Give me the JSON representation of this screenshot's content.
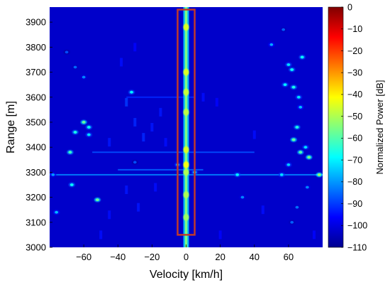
{
  "chart_data": {
    "type": "heatmap",
    "title": "",
    "xlabel": "Velocity [km/h]",
    "ylabel": "Range [m]",
    "xlim": [
      -80,
      80
    ],
    "ylim": [
      3000,
      3960
    ],
    "xticks": [
      -60,
      -40,
      -20,
      0,
      20,
      40,
      60
    ],
    "yticks": [
      3000,
      3100,
      3200,
      3300,
      3400,
      3500,
      3600,
      3700,
      3800,
      3900
    ],
    "colorbar": {
      "label": "Normalized Power [dB]",
      "range": [
        -110,
        0
      ],
      "ticks": [
        0,
        -10,
        -20,
        -30,
        -40,
        -50,
        -60,
        -70,
        -80,
        -90,
        -100,
        -110
      ],
      "colormap": "jet"
    },
    "background_level_db": -102,
    "highlight_box": {
      "x": [
        -5,
        5
      ],
      "y": [
        3050,
        3950
      ],
      "color": "#c0392b"
    },
    "zero_velocity_ridge": {
      "x": 0,
      "y_range": [
        3000,
        3960
      ],
      "level_db": -55,
      "peaks": [
        {
          "y": 3880,
          "db": -45
        },
        {
          "y": 3700,
          "db": -45
        },
        {
          "y": 3620,
          "db": -47
        },
        {
          "y": 3540,
          "db": -48
        },
        {
          "y": 3390,
          "db": -45
        },
        {
          "y": 3330,
          "db": -42
        },
        {
          "y": 3300,
          "db": -50
        },
        {
          "y": 3210,
          "db": -50
        },
        {
          "y": 3120,
          "db": -52
        }
      ]
    },
    "horizontal_streaks": [
      {
        "y": 3290,
        "x": [
          -80,
          80
        ],
        "db": -82
      },
      {
        "y": 3380,
        "x": [
          -55,
          40
        ],
        "db": -88
      },
      {
        "y": 3310,
        "x": [
          -40,
          10
        ],
        "db": -86
      },
      {
        "y": 3600,
        "x": [
          -35,
          5
        ],
        "db": -92
      }
    ],
    "targets": [
      {
        "x": -60,
        "y": 3500,
        "db": -58
      },
      {
        "x": -57,
        "y": 3480,
        "db": -68
      },
      {
        "x": -65,
        "y": 3460,
        "db": -66
      },
      {
        "x": -57,
        "y": 3450,
        "db": -72
      },
      {
        "x": -68,
        "y": 3380,
        "db": -62
      },
      {
        "x": -67,
        "y": 3250,
        "db": -68
      },
      {
        "x": -52,
        "y": 3190,
        "db": -58
      },
      {
        "x": -76,
        "y": 3140,
        "db": -76
      },
      {
        "x": -78,
        "y": 3290,
        "db": -80
      },
      {
        "x": -32,
        "y": 3620,
        "db": -70
      },
      {
        "x": -60,
        "y": 3680,
        "db": -82
      },
      {
        "x": -65,
        "y": 3720,
        "db": -85
      },
      {
        "x": -70,
        "y": 3780,
        "db": -88
      },
      {
        "x": -30,
        "y": 3340,
        "db": -88
      },
      {
        "x": -5,
        "y": 3330,
        "db": -75
      },
      {
        "x": 5,
        "y": 3300,
        "db": -72
      },
      {
        "x": 30,
        "y": 3290,
        "db": -70
      },
      {
        "x": 33,
        "y": 3200,
        "db": -82
      },
      {
        "x": 50,
        "y": 3810,
        "db": -78
      },
      {
        "x": 57,
        "y": 3870,
        "db": -86
      },
      {
        "x": 60,
        "y": 3730,
        "db": -72
      },
      {
        "x": 62,
        "y": 3710,
        "db": -68
      },
      {
        "x": 58,
        "y": 3650,
        "db": -70
      },
      {
        "x": 63,
        "y": 3640,
        "db": -66
      },
      {
        "x": 66,
        "y": 3600,
        "db": -72
      },
      {
        "x": 67,
        "y": 3560,
        "db": -76
      },
      {
        "x": 65,
        "y": 3480,
        "db": -66
      },
      {
        "x": 63,
        "y": 3430,
        "db": -58
      },
      {
        "x": 67,
        "y": 3380,
        "db": -60
      },
      {
        "x": 72,
        "y": 3360,
        "db": -56
      },
      {
        "x": 60,
        "y": 3330,
        "db": -74
      },
      {
        "x": 56,
        "y": 3290,
        "db": -72
      },
      {
        "x": 78,
        "y": 3290,
        "db": -52
      },
      {
        "x": 70,
        "y": 3400,
        "db": -72
      },
      {
        "x": 68,
        "y": 3760,
        "db": -68
      },
      {
        "x": 71,
        "y": 3240,
        "db": -82
      },
      {
        "x": 65,
        "y": 3160,
        "db": -84
      },
      {
        "x": 62,
        "y": 3100,
        "db": -86
      }
    ],
    "faint_clutter": [
      {
        "x": -35,
        "y": 3580,
        "db": -90
      },
      {
        "x": -30,
        "y": 3500,
        "db": -92
      },
      {
        "x": -25,
        "y": 3440,
        "db": -92
      },
      {
        "x": -20,
        "y": 3480,
        "db": -94
      },
      {
        "x": -15,
        "y": 3540,
        "db": -94
      },
      {
        "x": -35,
        "y": 3230,
        "db": -94
      },
      {
        "x": -28,
        "y": 3160,
        "db": -94
      },
      {
        "x": -18,
        "y": 3240,
        "db": -95
      },
      {
        "x": -12,
        "y": 3420,
        "db": -95
      },
      {
        "x": -38,
        "y": 3740,
        "db": -95
      },
      {
        "x": -30,
        "y": 3800,
        "db": -96
      },
      {
        "x": -45,
        "y": 3420,
        "db": -94
      },
      {
        "x": -45,
        "y": 3130,
        "db": -95
      },
      {
        "x": 10,
        "y": 3600,
        "db": -95
      },
      {
        "x": 18,
        "y": 3580,
        "db": -96
      },
      {
        "x": 40,
        "y": 3450,
        "db": -95
      },
      {
        "x": 45,
        "y": 3150,
        "db": -95
      },
      {
        "x": 20,
        "y": 3050,
        "db": -96
      },
      {
        "x": -50,
        "y": 3050,
        "db": -95
      },
      {
        "x": 75,
        "y": 3050,
        "db": -96
      }
    ]
  }
}
